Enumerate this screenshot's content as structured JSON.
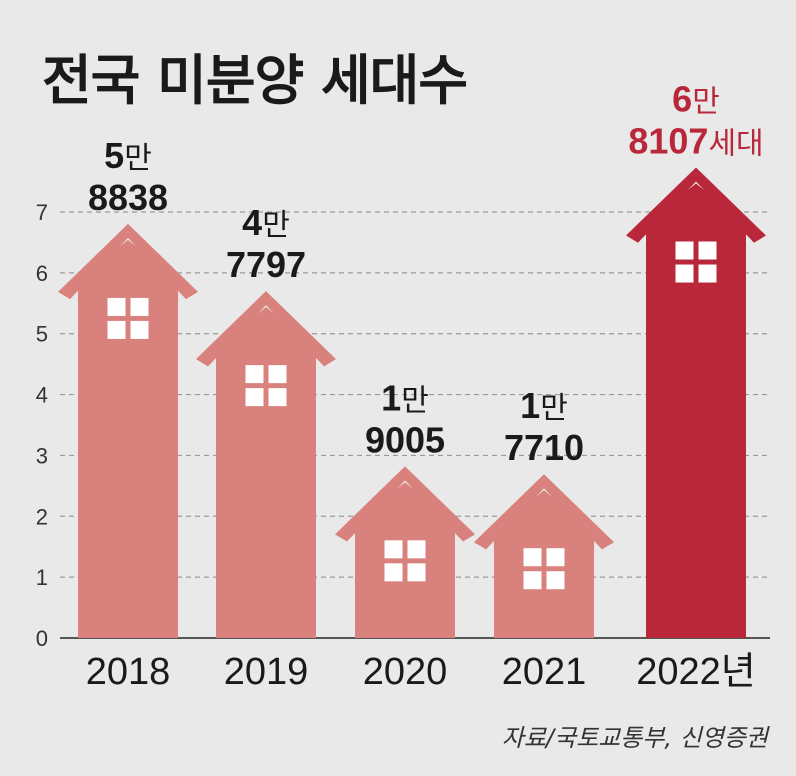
{
  "title": "전국 미분양 세대수",
  "source": "자료/국토교통부, 신영증권",
  "colors": {
    "normal_house": "#d9817c",
    "normal_roof": "#e0857f",
    "highlight_house": "#b8283a",
    "highlight_label": "#b8283a",
    "window": "#ffffff",
    "grid": "#9a9a9a"
  },
  "chart_data": {
    "type": "bar",
    "title": "전국 미분양 세대수",
    "categories": [
      "2018",
      "2019",
      "2020",
      "2021",
      "2022년"
    ],
    "values": [
      58838,
      47797,
      19005,
      17710,
      68107
    ],
    "series": [
      {
        "values": [
          58838,
          47797,
          19005,
          17710,
          68107
        ]
      }
    ],
    "ylim": [
      0,
      7
    ],
    "yticks": [
      "0",
      "1",
      "2",
      "3",
      "4",
      "5",
      "6",
      "7"
    ],
    "grid": true,
    "highlight_index": 4,
    "data_labels": [
      {
        "line1_num": "5",
        "line1_unit": "만",
        "line2": "8838",
        "suffix": ""
      },
      {
        "line1_num": "4",
        "line1_unit": "만",
        "line2": "7797",
        "suffix": ""
      },
      {
        "line1_num": "1",
        "line1_unit": "만",
        "line2": "9005",
        "suffix": ""
      },
      {
        "line1_num": "1",
        "line1_unit": "만",
        "line2": "7710",
        "suffix": ""
      },
      {
        "line1_num": "6",
        "line1_unit": "만",
        "line2": "8107",
        "suffix": "세대"
      }
    ]
  }
}
